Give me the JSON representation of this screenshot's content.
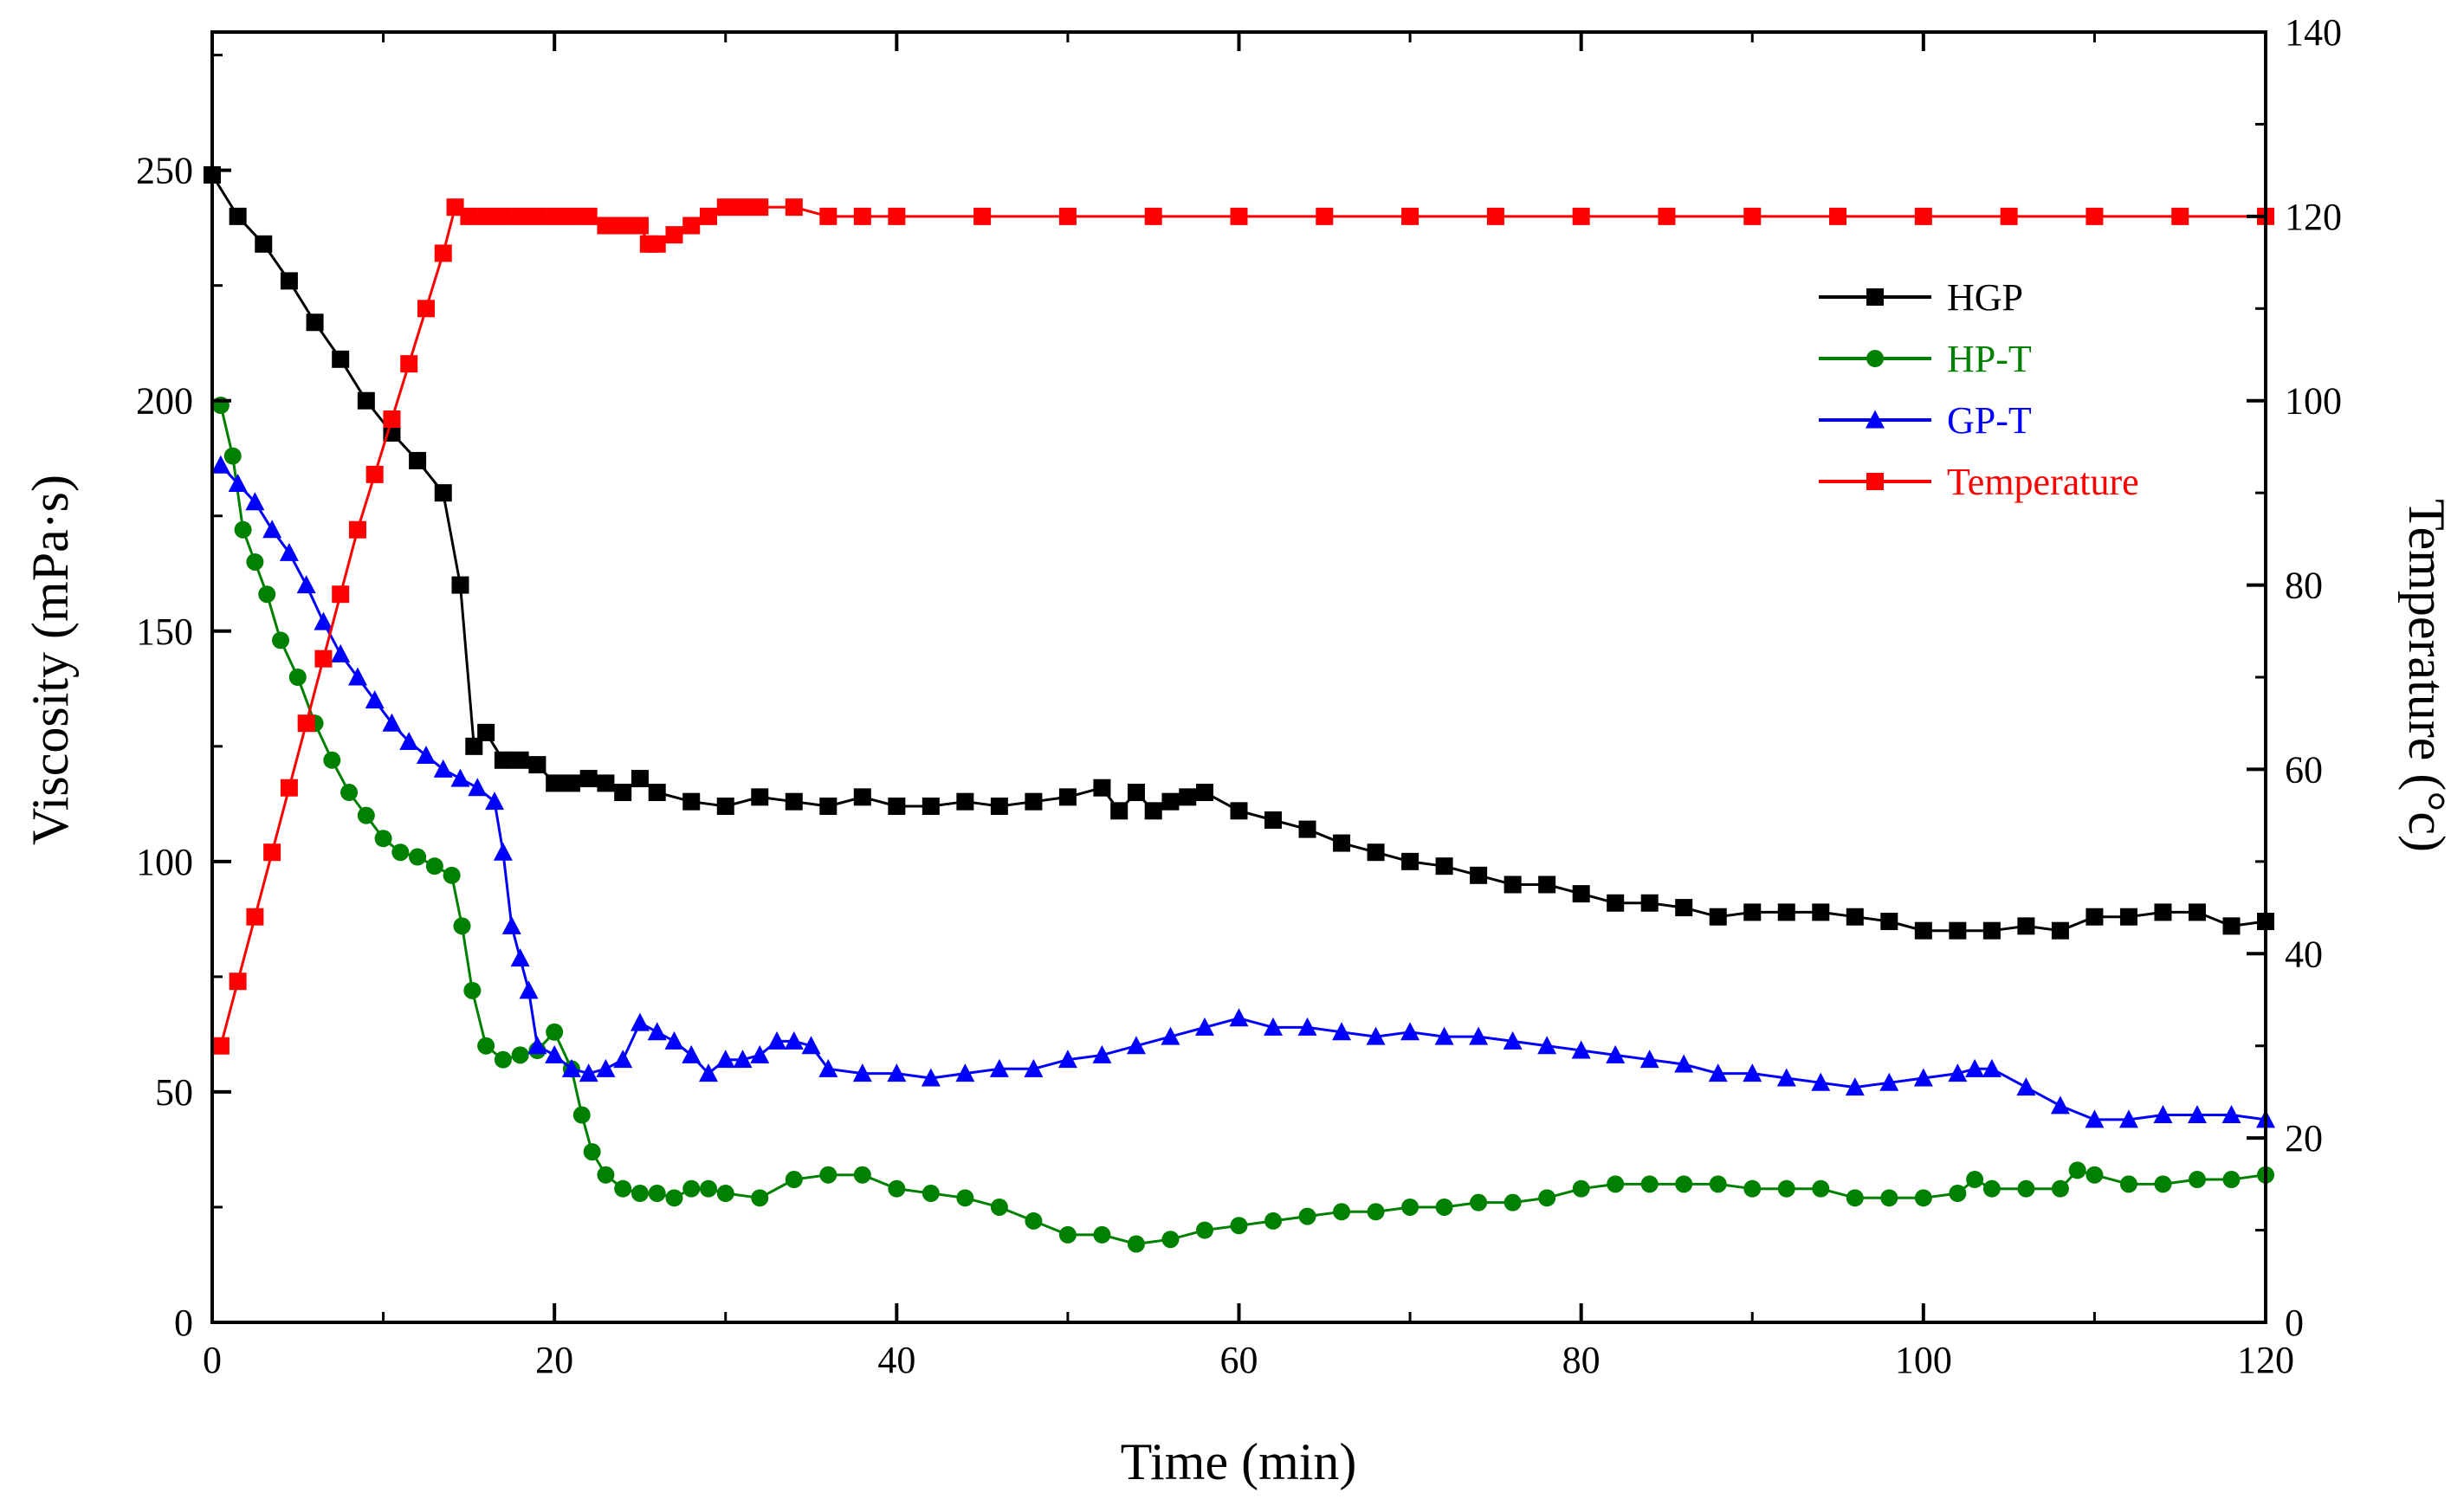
{
  "chart_data": {
    "type": "line",
    "title": "",
    "xlabel": "Time (min)",
    "ylabel": "Viscosity (mPa·s)",
    "y2label": "Temperature (°c)",
    "xlim": [
      0,
      120
    ],
    "ylim": [
      0,
      280
    ],
    "y2lim": [
      0,
      140
    ],
    "xticks": [
      0,
      20,
      40,
      60,
      80,
      100,
      120
    ],
    "yticks": [
      0,
      50,
      100,
      150,
      200,
      250
    ],
    "y2ticks": [
      0,
      20,
      40,
      60,
      80,
      100,
      120,
      140
    ],
    "grid": false,
    "legend_position": "top-right",
    "series": [
      {
        "name": "HGP",
        "axis": "left",
        "color": "#000000",
        "marker": "square",
        "x": [
          0,
          1.5,
          3,
          4.5,
          6,
          7.5,
          9,
          10.5,
          12,
          13.5,
          14.5,
          15.3,
          16,
          17,
          18,
          19,
          20,
          21,
          22,
          23,
          24,
          25,
          26,
          28,
          30,
          32,
          34,
          36,
          38,
          40,
          42,
          44,
          46,
          48,
          50,
          52,
          53,
          54,
          55,
          56,
          57,
          58,
          60,
          62,
          64,
          66,
          68,
          70,
          72,
          74,
          76,
          78,
          80,
          82,
          84,
          86,
          88,
          90,
          92,
          94,
          96,
          98,
          100,
          102,
          104,
          106,
          108,
          110,
          112,
          114,
          116,
          118,
          120
        ],
        "values": [
          249,
          240,
          234,
          226,
          217,
          209,
          200,
          193,
          187,
          180,
          160,
          125,
          128,
          122,
          122,
          121,
          117,
          117,
          118,
          117,
          115,
          118,
          115,
          113,
          112,
          114,
          113,
          112,
          114,
          112,
          112,
          113,
          112,
          113,
          114,
          116,
          111,
          115,
          111,
          113,
          114,
          115,
          111,
          109,
          107,
          104,
          102,
          100,
          99,
          97,
          95,
          95,
          93,
          91,
          91,
          90,
          88,
          89,
          89,
          89,
          88,
          87,
          85,
          85,
          85,
          86,
          85,
          88,
          88,
          89,
          89,
          86,
          87
        ]
      },
      {
        "name": "HP-T",
        "axis": "left",
        "color": "#008000",
        "marker": "circle",
        "x": [
          0.5,
          1.2,
          1.8,
          2.5,
          3.2,
          4,
          5,
          6,
          7,
          8,
          9,
          10,
          11,
          12,
          13,
          14,
          14.6,
          15.2,
          16,
          17,
          18,
          19,
          20,
          21,
          21.6,
          22.2,
          23,
          24,
          25,
          26,
          27,
          28,
          29,
          30,
          32,
          34,
          36,
          38,
          40,
          42,
          44,
          46,
          48,
          50,
          52,
          54,
          56,
          58,
          60,
          62,
          64,
          66,
          68,
          70,
          72,
          74,
          76,
          78,
          80,
          82,
          84,
          86,
          88,
          90,
          92,
          94,
          96,
          98,
          100,
          102,
          103,
          104,
          106,
          108,
          109,
          110,
          112,
          114,
          116,
          118,
          120
        ],
        "values": [
          199,
          188,
          172,
          165,
          158,
          148,
          140,
          130,
          122,
          115,
          110,
          105,
          102,
          101,
          99,
          97,
          86,
          72,
          60,
          57,
          58,
          59,
          63,
          55,
          45,
          37,
          32,
          29,
          28,
          28,
          27,
          29,
          29,
          28,
          27,
          31,
          32,
          32,
          29,
          28,
          27,
          25,
          22,
          19,
          19,
          17,
          18,
          20,
          21,
          22,
          23,
          24,
          24,
          25,
          25,
          26,
          26,
          27,
          29,
          30,
          30,
          30,
          30,
          29,
          29,
          29,
          27,
          27,
          27,
          28,
          31,
          29,
          29,
          29,
          33,
          32,
          30,
          30,
          31,
          31,
          32
        ]
      },
      {
        "name": "GP-T",
        "axis": "left",
        "color": "#0000ff",
        "marker": "triangle",
        "x": [
          0.5,
          1.5,
          2.5,
          3.5,
          4.5,
          5.5,
          6.5,
          7.5,
          8.5,
          9.5,
          10.5,
          11.5,
          12.5,
          13.5,
          14.5,
          15.5,
          16.5,
          17,
          17.5,
          18,
          18.5,
          19,
          20,
          21,
          22,
          23,
          24,
          25,
          26,
          27,
          28,
          29,
          30,
          31,
          32,
          33,
          34,
          35,
          36,
          38,
          40,
          42,
          44,
          46,
          48,
          50,
          52,
          54,
          56,
          58,
          60,
          62,
          64,
          66,
          68,
          70,
          72,
          74,
          76,
          78,
          80,
          82,
          84,
          86,
          88,
          90,
          92,
          94,
          96,
          98,
          100,
          102,
          103,
          104,
          106,
          108,
          110,
          112,
          114,
          116,
          118,
          120
        ],
        "values": [
          186,
          182,
          178,
          172,
          167,
          160,
          152,
          145,
          140,
          135,
          130,
          126,
          123,
          120,
          118,
          116,
          113,
          102,
          86,
          79,
          72,
          60,
          58,
          55,
          54,
          55,
          57,
          65,
          63,
          61,
          58,
          54,
          57,
          57,
          58,
          61,
          61,
          60,
          55,
          54,
          54,
          53,
          54,
          55,
          55,
          57,
          58,
          60,
          62,
          64,
          66,
          64,
          64,
          63,
          62,
          63,
          62,
          62,
          61,
          60,
          59,
          58,
          57,
          56,
          54,
          54,
          53,
          52,
          51,
          52,
          53,
          54,
          55,
          55,
          51,
          47,
          44,
          44,
          45,
          45,
          45,
          44
        ]
      },
      {
        "name": "Temperature",
        "axis": "right",
        "color": "#ff0000",
        "marker": "square",
        "x": [
          0.5,
          1.5,
          2.5,
          3.5,
          4.5,
          5.5,
          6.5,
          7.5,
          8.5,
          9.5,
          10.5,
          11.5,
          12.5,
          13.5,
          14.2,
          15,
          16,
          17,
          18,
          19,
          20,
          21,
          22,
          23,
          24,
          25,
          25.5,
          26,
          27,
          28,
          29,
          30,
          31,
          32,
          34,
          36,
          38,
          40,
          45,
          50,
          55,
          60,
          65,
          70,
          75,
          80,
          85,
          90,
          95,
          100,
          105,
          110,
          115,
          120
        ],
        "values": [
          30,
          37,
          44,
          51,
          58,
          65,
          72,
          79,
          86,
          92,
          98,
          104,
          110,
          116,
          121,
          120,
          120,
          120,
          120,
          120,
          120,
          120,
          120,
          119,
          119,
          119,
          117,
          117,
          118,
          119,
          120,
          121,
          121,
          121,
          121,
          120,
          120,
          120,
          120,
          120,
          120,
          120,
          120,
          120,
          120,
          120,
          120,
          120,
          120,
          120,
          120,
          120,
          120,
          120
        ]
      }
    ]
  }
}
